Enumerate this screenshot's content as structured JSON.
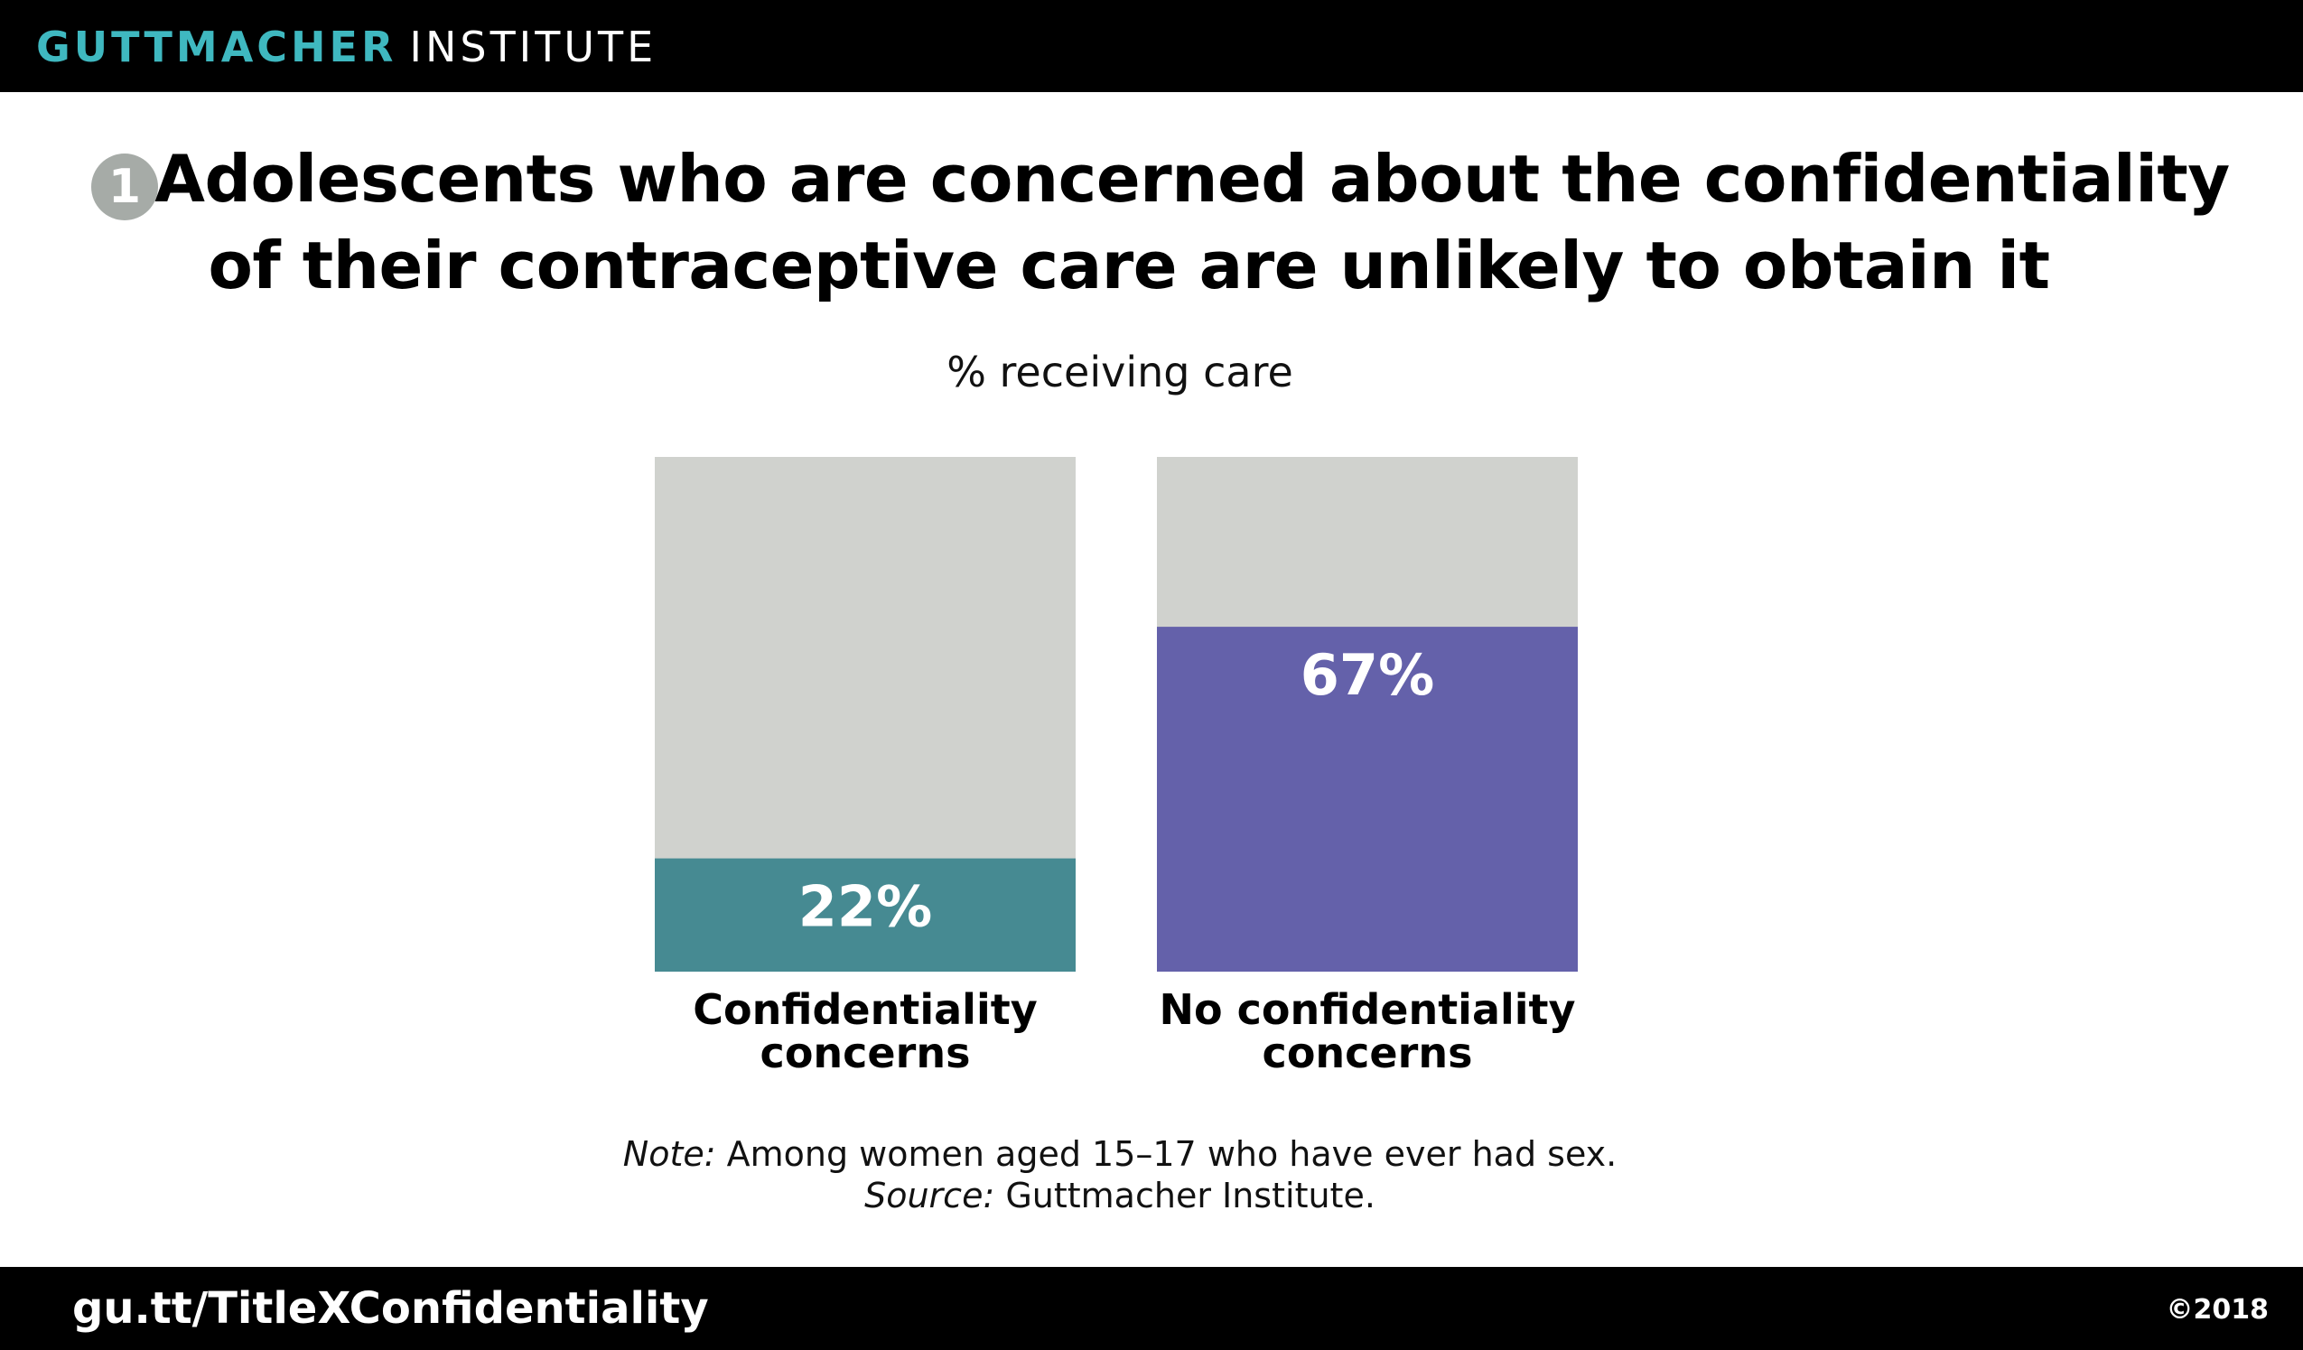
{
  "header": {
    "brand_primary": "GUTTMACHER",
    "brand_secondary": "INSTITUTE",
    "brand_primary_color": "#3fb8c0",
    "background_color": "#000000"
  },
  "title": {
    "badge_number": "1",
    "line1": "Adolescents who are concerned about the confidentiality",
    "line2": "of their contraceptive care are unlikely to obtain it"
  },
  "chart_data": {
    "type": "bar",
    "title": "Adolescents who are concerned about the confidentiality of their contraceptive care are unlikely to obtain it",
    "subtitle": "% receiving care",
    "categories": [
      "Confidentiality concerns",
      "No confidentiality concerns"
    ],
    "category_label_lines": [
      [
        "Confidentiality",
        "concerns"
      ],
      [
        "No confidentiality",
        "concerns"
      ]
    ],
    "values": [
      22,
      67
    ],
    "value_labels": [
      "22%",
      "67%"
    ],
    "ylim": [
      0,
      100
    ],
    "bar_colors": [
      "#468a92",
      "#6461aa"
    ],
    "background_bar_color": "#d0d2ce",
    "grid": false,
    "legend": "none"
  },
  "notes": {
    "note_label": "Note:",
    "note_text": " Among women aged 15–17 who have ever had sex.",
    "source_label": "Source:",
    "source_text": " Guttmacher Institute."
  },
  "footer": {
    "url": "gu.tt/TitleXConfidentiality",
    "copyright": "©2018"
  }
}
